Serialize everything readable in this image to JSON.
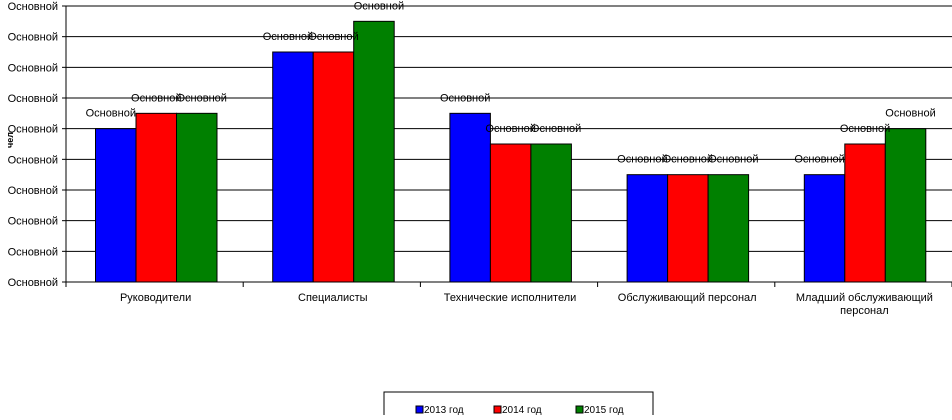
{
  "chart_data": {
    "type": "bar",
    "ylabel": "чел",
    "ytick_labels": [
      "Основной",
      "Основной",
      "Основной",
      "Основной",
      "Основной",
      "Основной",
      "Основной",
      "Основной",
      "Основной",
      "Основной"
    ],
    "ylim": [
      0,
      9
    ],
    "grid": true,
    "categories": [
      [
        "Руководители"
      ],
      [
        "Специалисты"
      ],
      [
        "Технические исполнители"
      ],
      [
        "Обслуживающий персонал"
      ],
      [
        "Младший обслуживающий",
        "персонал"
      ]
    ],
    "series": [
      {
        "name": "2013 год",
        "color": "#0000ff",
        "values": [
          5,
          7.5,
          5.5,
          3.5,
          3.5
        ],
        "labels": [
          "Основной",
          "Основной",
          "Основной",
          "Основной",
          "Основной"
        ]
      },
      {
        "name": "2014 год",
        "color": "#ff0000",
        "values": [
          5.5,
          7.5,
          4.5,
          3.5,
          4.5
        ],
        "labels": [
          "Основной",
          "Основной",
          "Основной",
          "Основной",
          "Основной"
        ]
      },
      {
        "name": "2015 год",
        "color": "#008000",
        "values": [
          5.5,
          8.5,
          4.5,
          3.5,
          5
        ],
        "labels": [
          "Основной",
          "Основной",
          "Основной",
          "Основной",
          "Основной"
        ]
      }
    ],
    "legend_position": "bottom"
  }
}
